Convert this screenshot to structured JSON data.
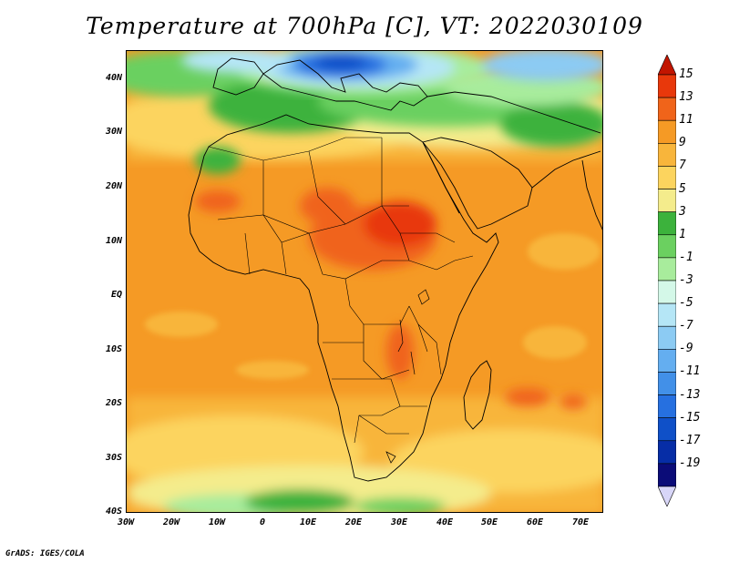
{
  "title": "Temperature at 700hPa [C], VT: 2022030109",
  "footer": "GrADS: IGES/COLA",
  "map": {
    "lat_ticks": [
      "40N",
      "30N",
      "20N",
      "10N",
      "EQ",
      "10S",
      "20S",
      "30S",
      "40S"
    ],
    "lon_ticks": [
      "30W",
      "20W",
      "10W",
      "0",
      "10E",
      "20E",
      "30E",
      "40E",
      "50E",
      "60E",
      "70E"
    ]
  },
  "colorbar": {
    "labels": [
      "15",
      "13",
      "11",
      "9",
      "7",
      "5",
      "3",
      "1",
      "-1",
      "-3",
      "-5",
      "-7",
      "-9",
      "-11",
      "-13",
      "-15",
      "-17",
      "-19"
    ],
    "colors": [
      "#c21500",
      "#e8380b",
      "#f0641a",
      "#f59a25",
      "#f8b53b",
      "#fcd45e",
      "#f4ec8c",
      "#3cb23c",
      "#6bd060",
      "#a8ec9c",
      "#d4f8e8",
      "#b5e6f6",
      "#8ccbf3",
      "#64aef0",
      "#4290e8",
      "#2670e0",
      "#0f50c8",
      "#062da6",
      "#0b0c78",
      "#d8d6f8"
    ]
  }
}
